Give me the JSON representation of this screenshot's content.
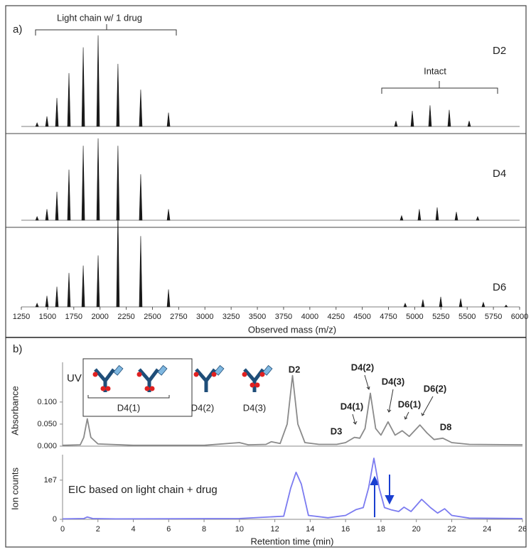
{
  "chart_data": [
    {
      "type": "spectrum",
      "annotations": [
        "a)",
        "Light chain w/ 1 drug",
        "Intact"
      ],
      "xlabel": "Observed  mass (m/z)",
      "xlim": [
        1250,
        6000
      ],
      "xticks": [
        1250,
        1500,
        1750,
        2000,
        2250,
        2500,
        2750,
        3000,
        3250,
        3500,
        3750,
        4000,
        4250,
        4500,
        4750,
        5000,
        5250,
        5500,
        5750,
        6000
      ],
      "ylim": [
        0,
        105
      ],
      "series": [
        {
          "name": "D2",
          "color": "#1a1a1a",
          "x": [
            1400,
            1494,
            1589,
            1704,
            1840,
            1982,
            2171,
            2388,
            2653,
            4821,
            4977,
            5146,
            5329,
            5519
          ],
          "values": [
            4,
            11,
            31,
            58,
            86,
            99,
            68,
            40,
            15,
            6,
            17,
            23,
            18,
            6
          ]
        },
        {
          "name": "D4",
          "color": "#1a1a1a",
          "x": [
            1400,
            1494,
            1589,
            1704,
            1840,
            1982,
            2171,
            2388,
            2653,
            4875,
            5044,
            5214,
            5397,
            5600
          ],
          "values": [
            4,
            12,
            31,
            55,
            81,
            89,
            81,
            50,
            12,
            5,
            12,
            14,
            9,
            4
          ]
        },
        {
          "name": "D6",
          "color": "#1a1a1a",
          "x": [
            1400,
            1494,
            1589,
            1704,
            1840,
            1982,
            2171,
            2388,
            2653,
            4909,
            5078,
            5248,
            5438,
            5654,
            5871
          ],
          "values": [
            4,
            12,
            22,
            37,
            45,
            56,
            105,
            77,
            19,
            4,
            8,
            11,
            9,
            5,
            2
          ]
        }
      ]
    },
    {
      "type": "line",
      "ylabel": "Absorbance",
      "annotations": [
        "b)",
        "UV",
        "D2",
        "D3",
        "D4(1)",
        "D4(2)",
        "D4(3)",
        "D6(1)",
        "D6(2)",
        "D8"
      ],
      "inset_labels": [
        "D4(1)",
        "D4(2)",
        "D4(3)"
      ],
      "xlim": [
        0,
        26
      ],
      "ylim": [
        0,
        0.19
      ],
      "yticks": [
        {
          "value": 0,
          "label": "0.000"
        },
        {
          "value": 0.05,
          "label": "0.050"
        },
        {
          "value": 0.1,
          "label": "0.100"
        }
      ],
      "color": "#8a8a8a",
      "x": [
        0,
        1.0,
        1.2,
        1.4,
        1.6,
        2.0,
        4,
        8,
        10,
        10.5,
        11.5,
        11.8,
        12.3,
        12.7,
        13.0,
        13.3,
        13.7,
        14.5,
        15.5,
        16,
        16.5,
        16.8,
        17.1,
        17.4,
        17.7,
        18.0,
        18.4,
        18.8,
        19.2,
        19.6,
        20.2,
        20.6,
        21,
        21.5,
        22,
        23,
        26
      ],
      "values": [
        0.002,
        0.003,
        0.02,
        0.062,
        0.02,
        0.005,
        0.002,
        0.002,
        0.008,
        0.003,
        0.004,
        0.01,
        0.006,
        0.05,
        0.16,
        0.05,
        0.008,
        0.004,
        0.004,
        0.008,
        0.02,
        0.018,
        0.04,
        0.12,
        0.04,
        0.025,
        0.055,
        0.025,
        0.035,
        0.022,
        0.048,
        0.03,
        0.015,
        0.018,
        0.008,
        0.004,
        0.003
      ]
    },
    {
      "type": "line",
      "ylabel": "Ion counts",
      "xlabel": "Retention time (min)",
      "annotations": [
        "EIC based on light chain + drug"
      ],
      "xlim": [
        0,
        26
      ],
      "xticks": [
        0,
        2,
        4,
        6,
        8,
        10,
        12,
        14,
        16,
        18,
        20,
        22,
        24,
        26
      ],
      "ylim": [
        0,
        16500000
      ],
      "yticks": [
        0,
        {
          "value": 10000000,
          "label": "1e7"
        }
      ],
      "color": "#7b7bf0",
      "x": [
        0,
        1.2,
        1.4,
        1.7,
        3,
        10,
        12.5,
        12.9,
        13.2,
        13.5,
        13.9,
        15,
        16,
        16.6,
        17,
        17.3,
        17.6,
        17.9,
        18.2,
        18.6,
        19,
        19.3,
        19.7,
        20.3,
        20.8,
        21.2,
        21.6,
        22,
        23,
        26
      ],
      "values": [
        100000,
        200000,
        600000,
        200000,
        100000,
        200000,
        800000,
        8000000,
        12000000,
        9000000,
        1000000,
        400000,
        1000000,
        2500000,
        3000000,
        8000000,
        15600000,
        8000000,
        3000000,
        2400000,
        2000000,
        3100000,
        2000000,
        5100000,
        3000000,
        1600000,
        2700000,
        1000000,
        300000,
        200000
      ]
    }
  ]
}
